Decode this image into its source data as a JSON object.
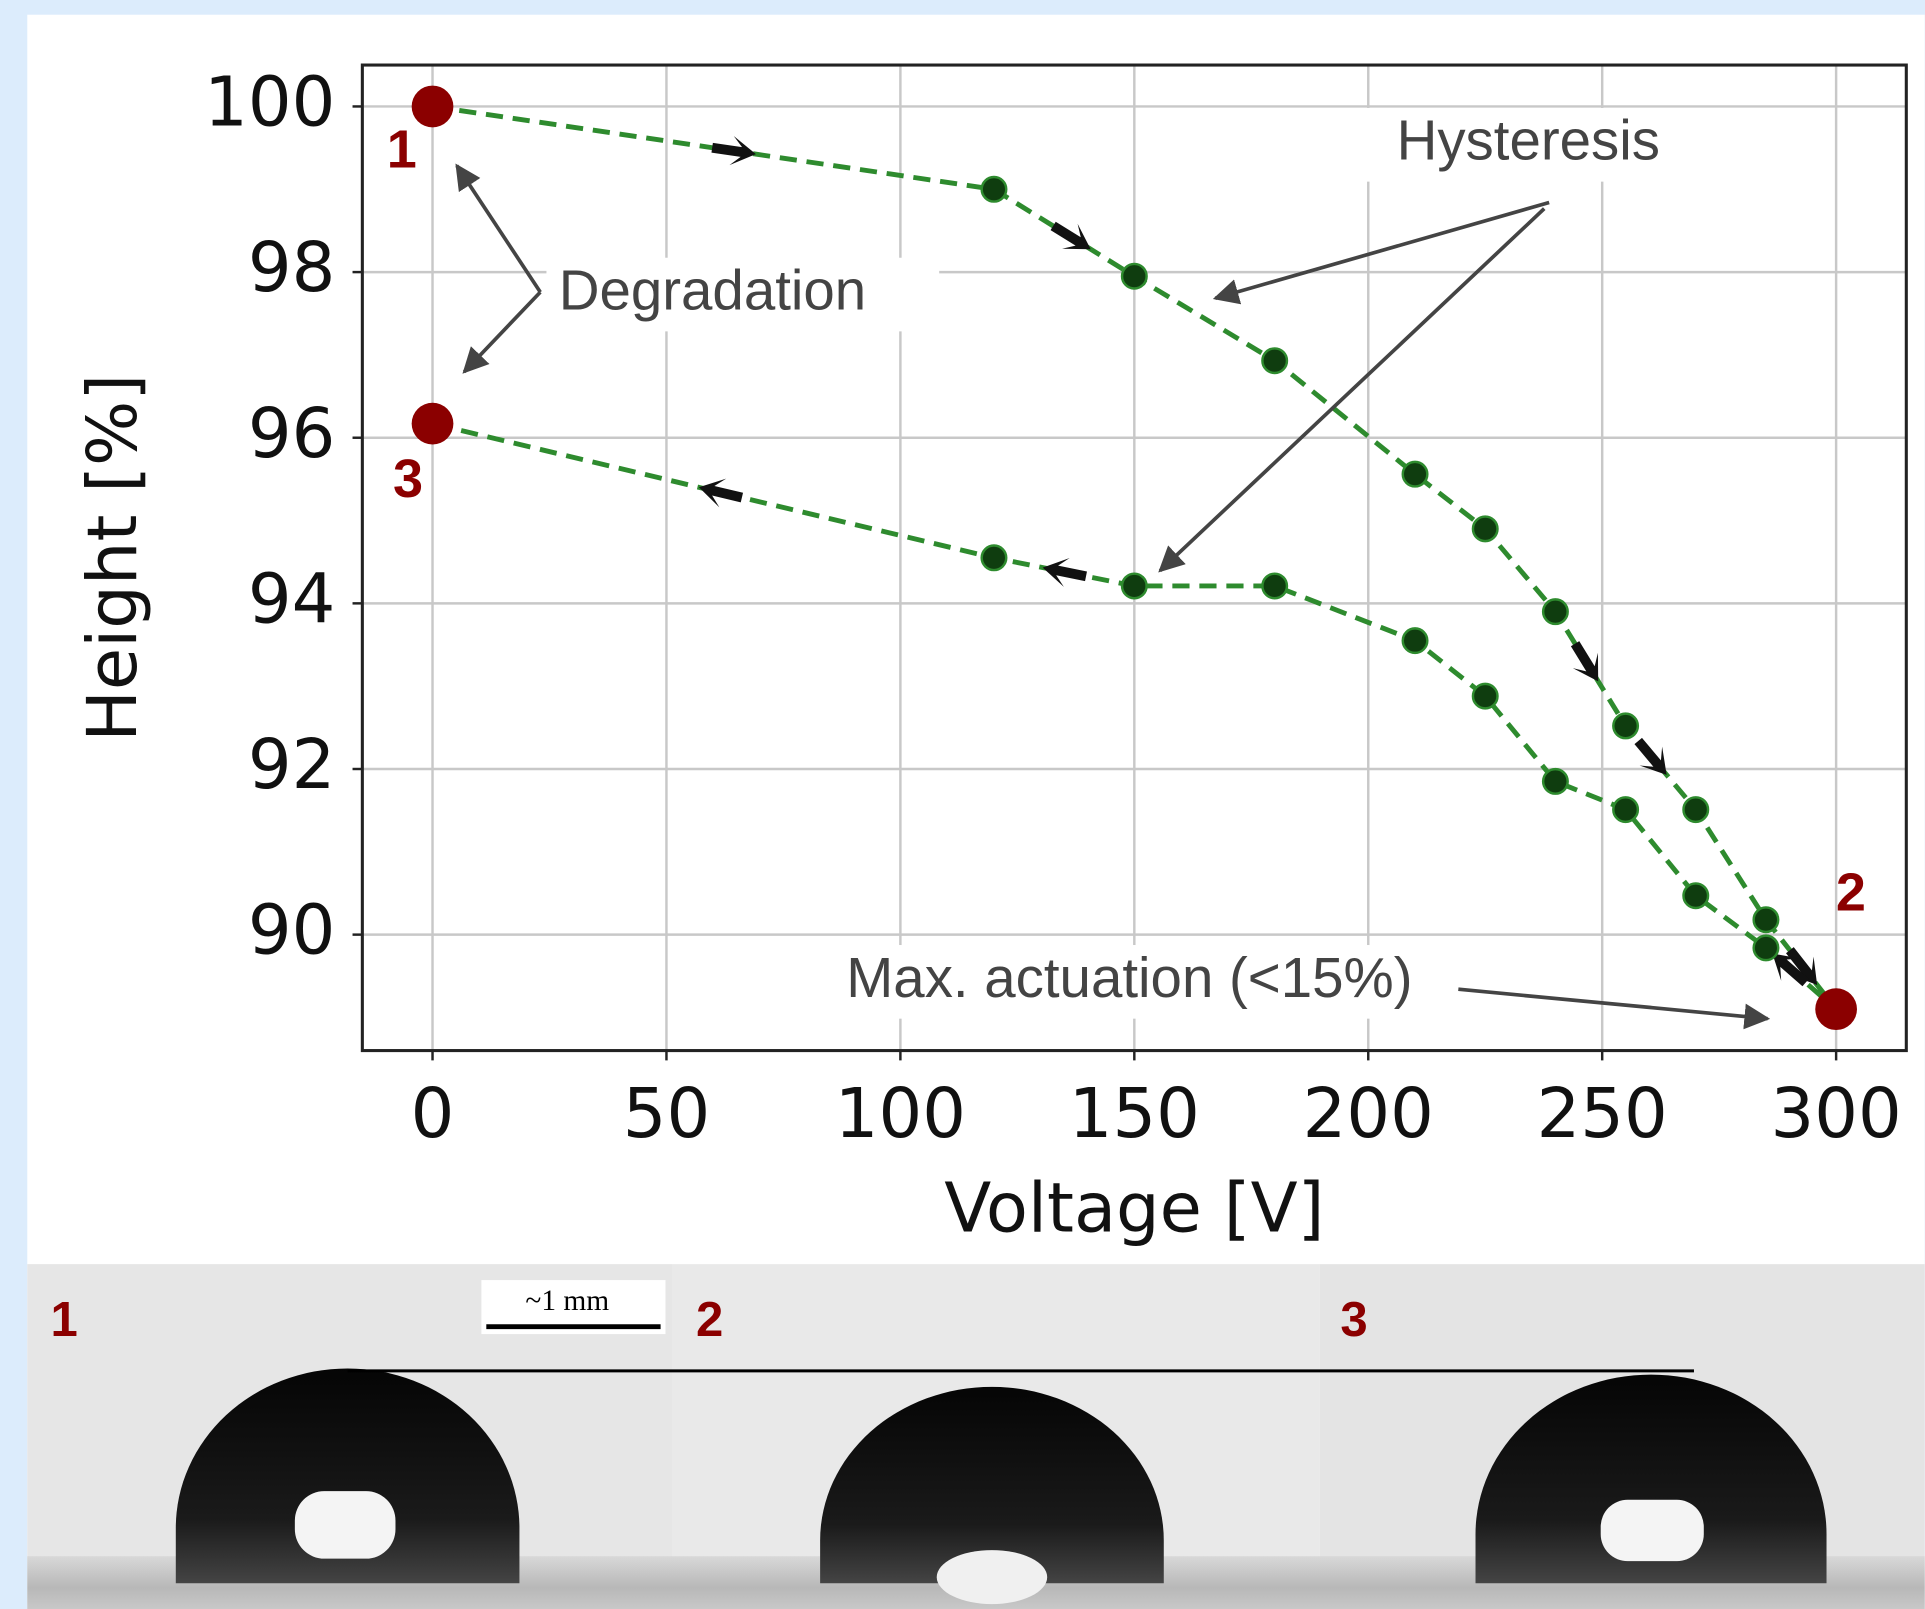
{
  "chart_data": {
    "type": "line",
    "xlabel": "Voltage [V]",
    "ylabel": "Height [%]",
    "x": [
      0,
      120,
      150,
      180,
      210,
      225,
      240,
      255,
      270,
      285,
      300,
      285,
      270,
      255,
      240,
      225,
      210,
      180,
      150,
      120,
      0
    ],
    "values": [
      100,
      99,
      97.95,
      96.93,
      95.56,
      94.9,
      93.9,
      92.52,
      91.51,
      90.18,
      89.1,
      89.84,
      90.47,
      91.51,
      91.85,
      92.88,
      93.55,
      94.21,
      94.21,
      94.55,
      96.17
    ],
    "point_labels": [
      "1",
      null,
      null,
      null,
      null,
      null,
      null,
      null,
      null,
      null,
      "2",
      null,
      null,
      null,
      null,
      null,
      null,
      null,
      null,
      null,
      "3"
    ],
    "color": "#2e8b2e",
    "marker_color": "#0f3d0f",
    "highlight_color": "#8b0000",
    "xlim": [
      -15,
      315
    ],
    "ylim": [
      88.6,
      100.5
    ],
    "xticks": [
      0,
      50,
      100,
      150,
      200,
      250,
      300
    ],
    "yticks": [
      90,
      92,
      94,
      96,
      98,
      100
    ],
    "grid": true,
    "annotations": [
      "Degradation",
      "Hysteresis",
      "Max. actuation (<15%)"
    ]
  },
  "photo_panels": {
    "labels": [
      "1",
      "2",
      "3"
    ],
    "scale_bar": "~1 mm"
  }
}
